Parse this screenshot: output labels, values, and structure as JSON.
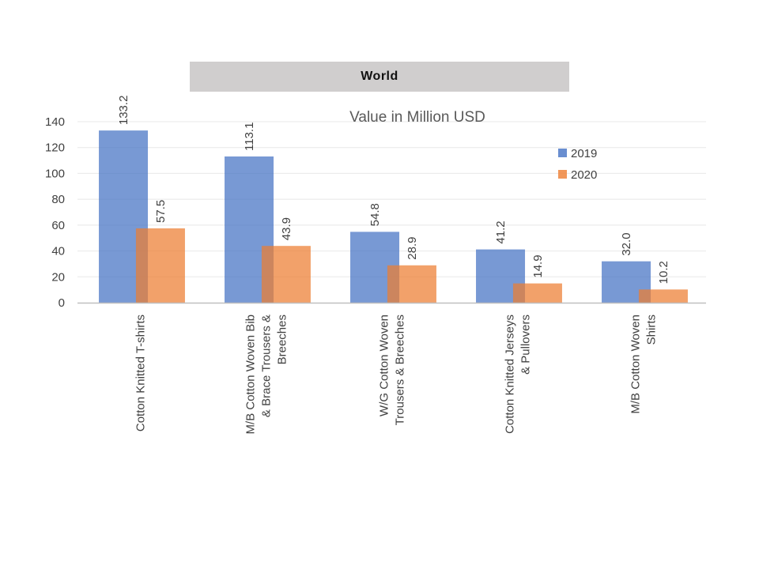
{
  "banner": {
    "title": "World"
  },
  "chart_data": {
    "type": "bar",
    "title": "World",
    "subtitle": "Value in Million USD",
    "categories": [
      [
        "Cotton Knitted  T-shirts"
      ],
      [
        "M/B Cotton Woven Bib",
        "& Brace Trousers &",
        "Breeches"
      ],
      [
        "W/G Cotton Woven",
        "Trousers & Breeches"
      ],
      [
        "Cotton Knitted  Jerseys",
        "& Pullovers"
      ],
      [
        "M/B Cotton Woven",
        "Shirts"
      ]
    ],
    "series": [
      {
        "name": "2019",
        "values": [
          133.2,
          113.1,
          54.8,
          41.2,
          32.0
        ],
        "labels": [
          "133.2",
          "113.1",
          "54.8",
          "41.2",
          "32.0"
        ],
        "color": "#4472c4"
      },
      {
        "name": "2020",
        "values": [
          57.5,
          43.9,
          28.9,
          14.9,
          10.2
        ],
        "labels": [
          "57.5",
          "43.9",
          "28.9",
          "14.9",
          "10.2"
        ],
        "color": "#ed7d31"
      }
    ],
    "ylim": [
      0,
      140
    ],
    "yticks": [
      0,
      20,
      40,
      60,
      80,
      100,
      120,
      140
    ],
    "grid": true,
    "legend": "top-right",
    "xlabel": "",
    "ylabel": ""
  }
}
